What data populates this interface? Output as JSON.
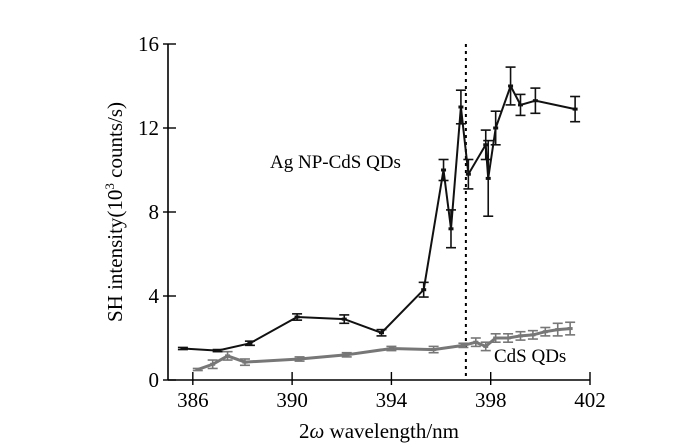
{
  "chart_data": {
    "type": "line",
    "xlabel_prefix": "2",
    "xlabel_symbol": "ω",
    "xlabel_suffix": " wavelength/nm",
    "ylabel_prefix": "SH intensity(10",
    "ylabel_sup": "3",
    "ylabel_suffix": " counts/s)",
    "xlim": [
      385,
      402
    ],
    "ylim": [
      0,
      16
    ],
    "xticks": [
      386,
      390,
      394,
      398,
      402
    ],
    "yticks": [
      0,
      4,
      8,
      12,
      16
    ],
    "grid": false,
    "reference_line": {
      "x": 397,
      "style": "dotted"
    },
    "series": [
      {
        "name": "Ag NP-CdS QDs",
        "color": "#111111",
        "x": [
          385.6,
          387.0,
          388.3,
          390.2,
          392.1,
          393.6,
          395.3,
          396.1,
          396.4,
          396.8,
          397.1,
          397.8,
          397.9,
          398.2,
          398.8,
          399.2,
          399.8,
          401.4
        ],
        "y": [
          1.5,
          1.4,
          1.75,
          3.0,
          2.9,
          2.25,
          4.3,
          10.0,
          7.2,
          13.0,
          9.8,
          11.2,
          9.6,
          12.0,
          14.0,
          13.1,
          13.3,
          12.9
        ],
        "err": [
          0.05,
          0.05,
          0.1,
          0.15,
          0.2,
          0.15,
          0.35,
          0.5,
          0.9,
          0.8,
          0.7,
          0.7,
          1.8,
          0.8,
          0.9,
          0.5,
          0.6,
          0.6
        ]
      },
      {
        "name": "CdS QDs",
        "color": "#777777",
        "x": [
          386.2,
          386.8,
          387.4,
          388.1,
          390.3,
          392.2,
          394.0,
          395.7,
          396.9,
          397.4,
          397.8,
          398.2,
          398.7,
          399.2,
          399.7,
          400.2,
          400.7,
          401.2
        ],
        "y": [
          0.5,
          0.75,
          1.15,
          0.85,
          1.0,
          1.2,
          1.5,
          1.45,
          1.65,
          1.8,
          1.6,
          2.0,
          2.0,
          2.1,
          2.15,
          2.3,
          2.4,
          2.45
        ],
        "err": [
          0.05,
          0.2,
          0.2,
          0.15,
          0.1,
          0.1,
          0.1,
          0.15,
          0.1,
          0.2,
          0.2,
          0.2,
          0.2,
          0.2,
          0.2,
          0.2,
          0.3,
          0.3
        ]
      }
    ],
    "annotations": [
      {
        "text": "Ag NP-CdS QDs",
        "series": 0
      },
      {
        "text": "CdS QDs",
        "series": 1
      }
    ]
  }
}
